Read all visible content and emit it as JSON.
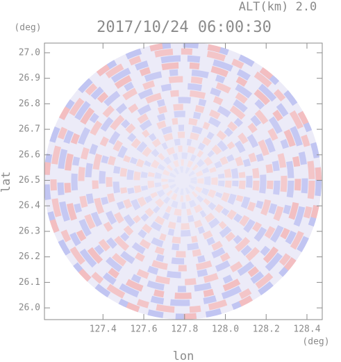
{
  "chart_data": {
    "type": "image",
    "altitude_label": "ALT(km) 2.0",
    "title": "2017/10/24 06:00:30",
    "y_unit": "(deg)",
    "x_unit": "(deg)",
    "xlabel": "lon",
    "ylabel": "lat",
    "xlim": [
      127.113,
      128.475
    ],
    "ylim": [
      25.954,
      27.038
    ],
    "xticks": [
      127.4,
      127.6,
      127.8,
      {
        "value": 128,
        "label": "128.0"
      },
      128.2,
      128.4
    ],
    "yticks": [
      {
        "value": 26,
        "label": "26.0"
      },
      26.1,
      26.2,
      26.3,
      26.4,
      26.5,
      26.6,
      26.7,
      26.8,
      26.9,
      {
        "value": 27,
        "label": "27.0"
      }
    ]
  }
}
